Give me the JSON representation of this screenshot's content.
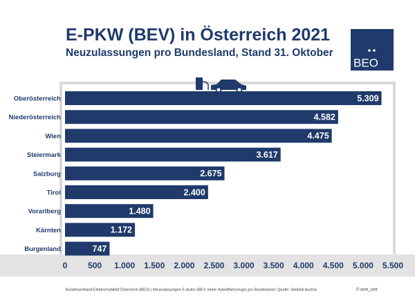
{
  "chart_data": {
    "type": "bar",
    "orientation": "horizontal",
    "title": "E-PKW (BEV) in Österreich 2021",
    "subtitle": "Neuzulassungen pro Bundesland, Stand 31. Oktober",
    "logo": "BEO",
    "categories": [
      "Oberösterreich",
      "Niederösterreich",
      "Wien",
      "Steiermark",
      "Salzburg",
      "Tirol",
      "Vorarlberg",
      "Kärnten",
      "Burgenland"
    ],
    "values": [
      5309,
      4582,
      4475,
      3617,
      2675,
      2400,
      1480,
      1172,
      747
    ],
    "value_labels": [
      "5.309",
      "4.582",
      "4.475",
      "3.617",
      "2.675",
      "2.400",
      "1.480",
      "1.172",
      "747"
    ],
    "color": "#1f3a6b",
    "xlim": [
      0,
      5500
    ],
    "xticks": [
      0,
      500,
      {
        "value": 1000,
        "label": "1.000"
      },
      {
        "value": 1500,
        "label": "1.500"
      },
      {
        "value": 2000,
        "label": "2.000"
      },
      {
        "value": 2500,
        "label": "2.500"
      },
      {
        "value": 3000,
        "label": "3.000"
      },
      {
        "value": 3500,
        "label": "3.500"
      },
      {
        "value": 4000,
        "label": "4.000"
      },
      {
        "value": 4500,
        "label": "4.500"
      },
      {
        "value": 5000,
        "label": "5.000"
      },
      {
        "value": 5500,
        "label": "5.500"
      }
    ],
    "grid": false,
    "source": "Bundesverband Elektromobilität Österreich (BEO) | Neuzulassungen E-Autos (BEV, keine Hybridfahrzeuge) pro Bundesland | Quelle: Statistik Austria",
    "credit": "© ecm_unit"
  }
}
